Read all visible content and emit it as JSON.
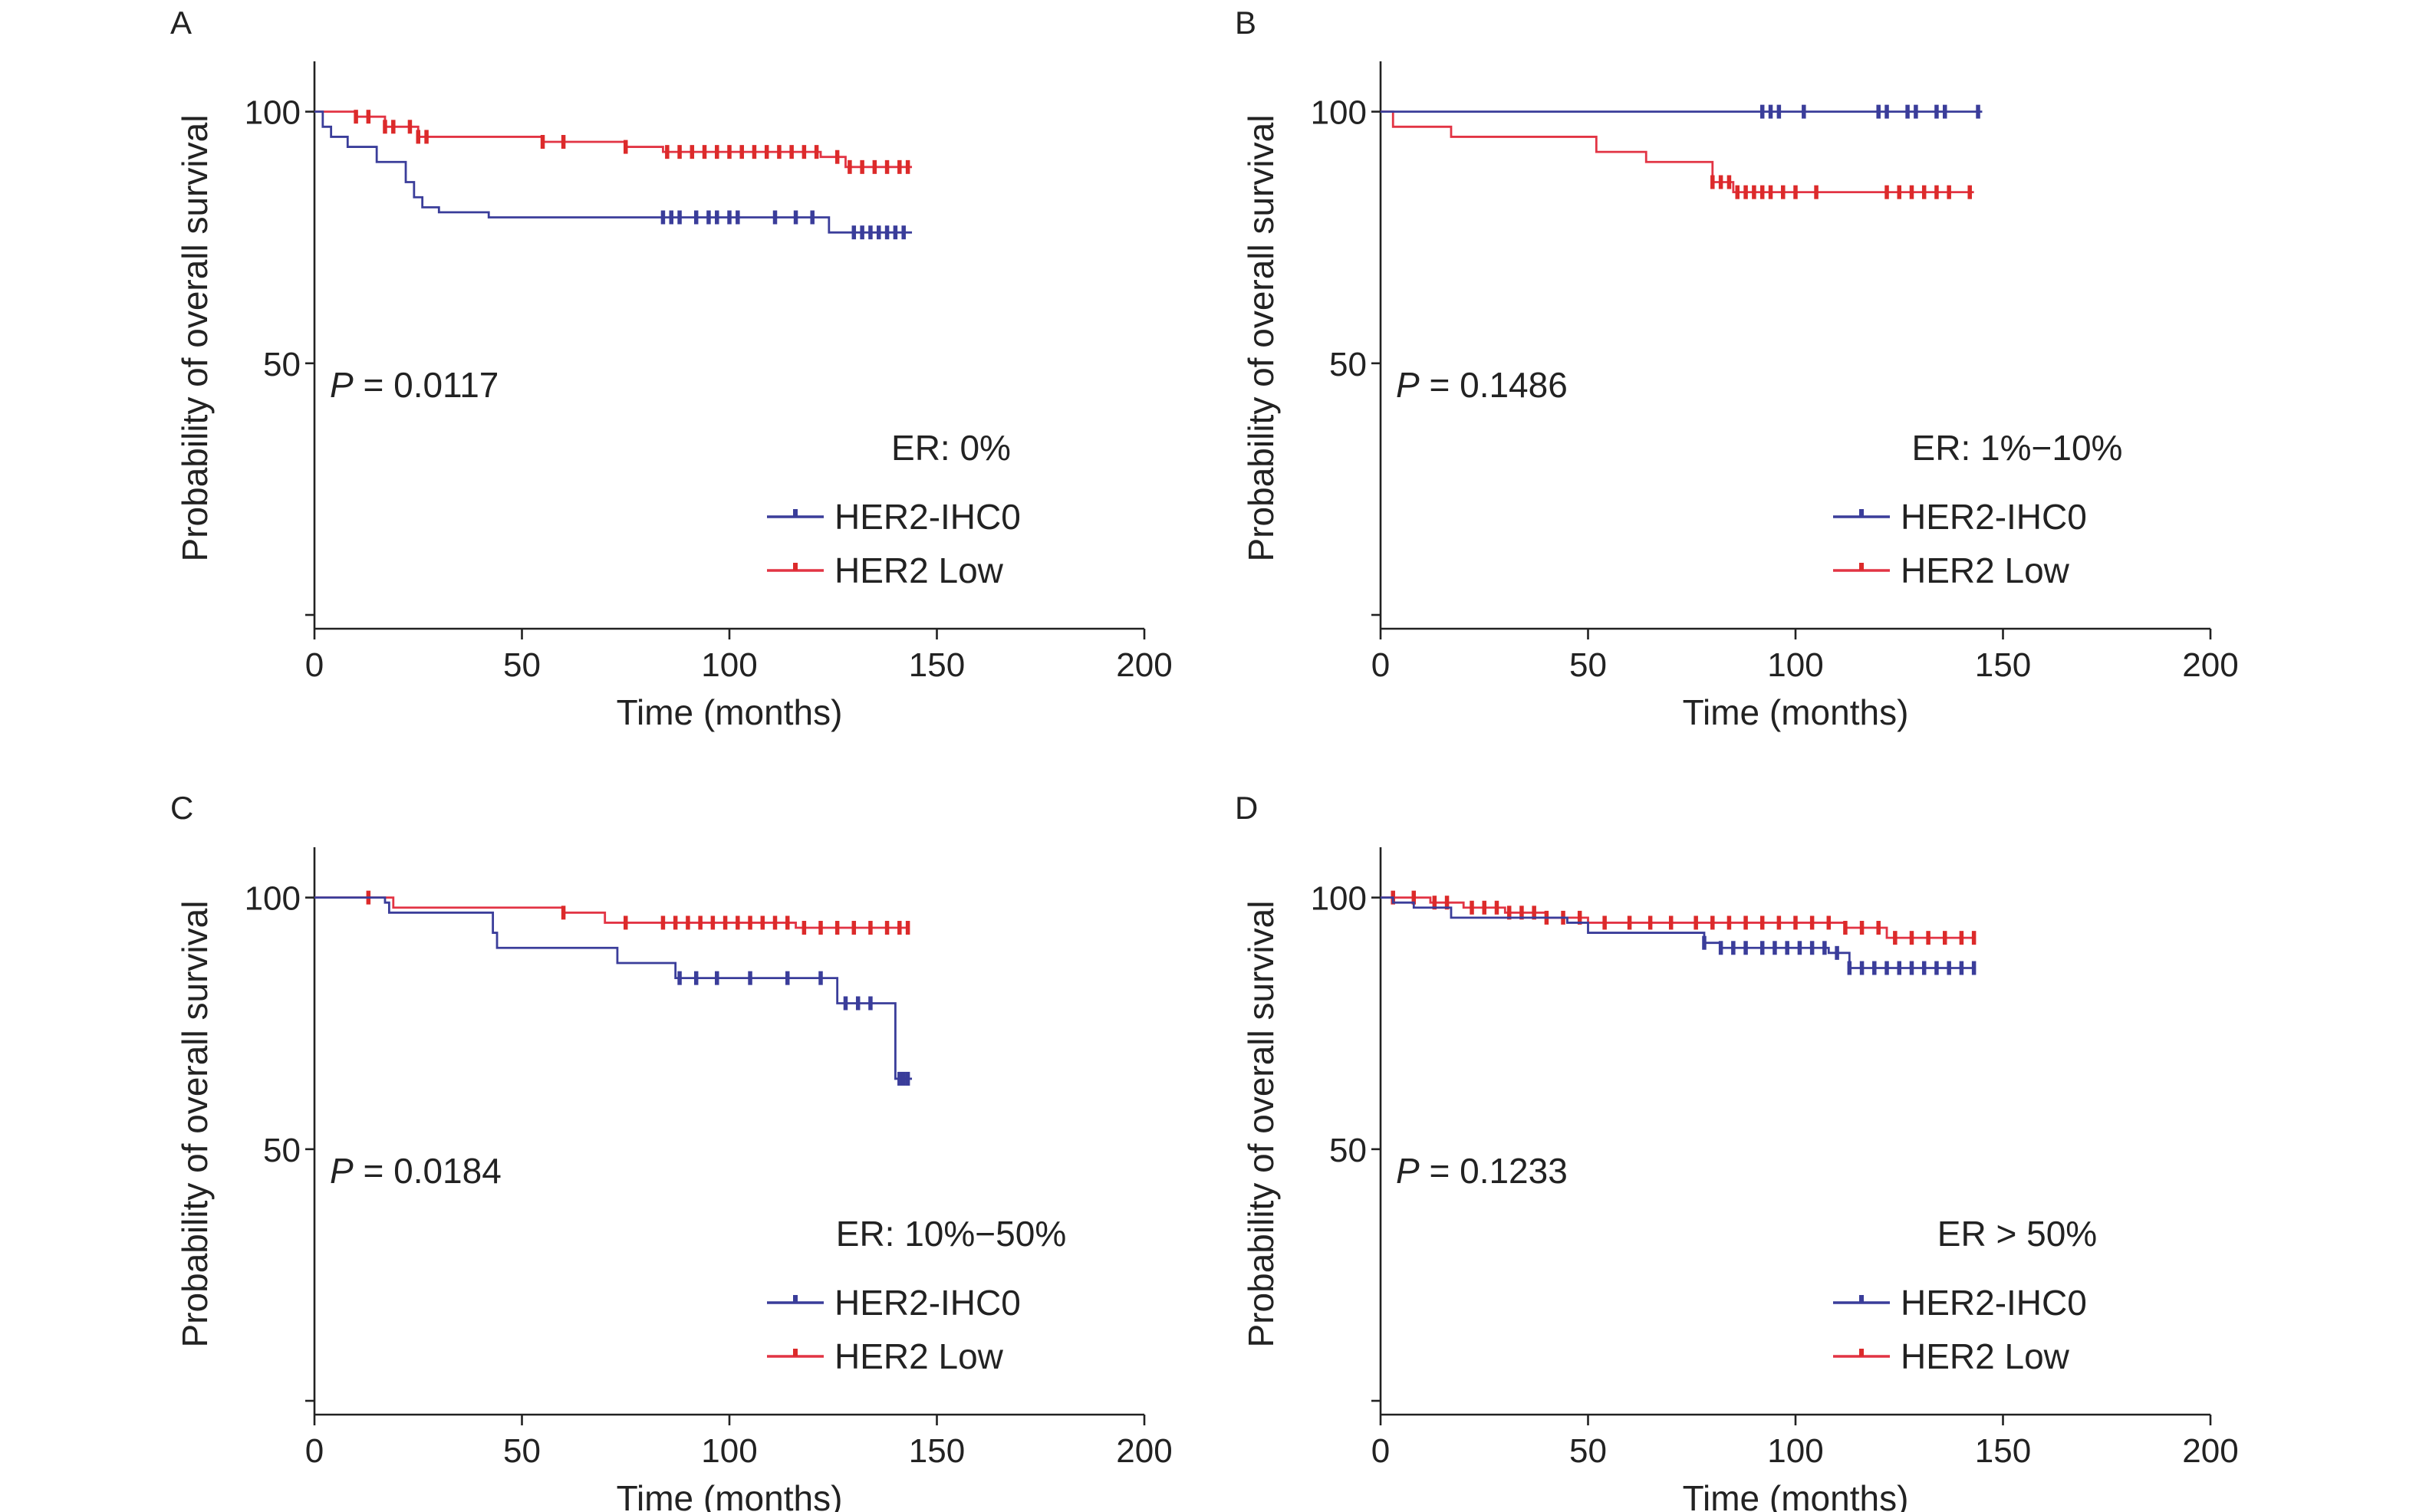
{
  "colors": {
    "her2_ihc0": "#3a3d9a",
    "her2_low": "#e23444",
    "censor_low": "#dc2a2a",
    "axis": "#222222"
  },
  "chart_data": [
    {
      "type": "line",
      "panel_label": "A",
      "xlabel": "Time (months)",
      "ylabel": "Probability of overall survival",
      "xlim": [
        0,
        200
      ],
      "ylim": [
        0,
        110
      ],
      "xticks": [
        0,
        50,
        100,
        150,
        200
      ],
      "yticks": [
        50,
        100
      ],
      "p_label": "P",
      "p_value": " = 0.0117",
      "legend_title": "ER: 0%",
      "legend_placement": "bottom-right",
      "series": [
        {
          "name": "HER2-IHC0",
          "color": "#3a3d9a",
          "x": [
            0,
            2,
            4,
            8,
            15,
            22,
            24,
            26,
            30,
            42,
            124,
            144
          ],
          "y": [
            100,
            97,
            95,
            93,
            90,
            86,
            83,
            81,
            80,
            79,
            76,
            76
          ],
          "censored_x": [
            84,
            86,
            88,
            92,
            95,
            97,
            100,
            102,
            111,
            116,
            120,
            130,
            132,
            134,
            136,
            138,
            140,
            142
          ]
        },
        {
          "name": "HER2 Low",
          "color": "#e23444",
          "x": [
            0,
            10,
            17,
            25,
            55,
            75,
            84,
            122,
            128,
            144
          ],
          "y": [
            100,
            99,
            97,
            95,
            94,
            93,
            92,
            91,
            89,
            89
          ],
          "censored_x": [
            10,
            13,
            17,
            19,
            23,
            25,
            27,
            55,
            60,
            75,
            85,
            88,
            91,
            94,
            97,
            100,
            103,
            106,
            109,
            112,
            115,
            118,
            121,
            126,
            129,
            132,
            135,
            138,
            141,
            143
          ]
        }
      ]
    },
    {
      "type": "line",
      "panel_label": "B",
      "xlabel": "Time (months)",
      "ylabel": "Probability of overall survival",
      "xlim": [
        0,
        200
      ],
      "ylim": [
        0,
        110
      ],
      "xticks": [
        0,
        50,
        100,
        150,
        200
      ],
      "yticks": [
        50,
        100
      ],
      "p_label": "P",
      "p_value": " = 0.1486",
      "legend_title": "ER: 1%−10%",
      "legend_placement": "bottom-right",
      "series": [
        {
          "name": "HER2-IHC0",
          "color": "#3a3d9a",
          "x": [
            0,
            145
          ],
          "y": [
            100,
            100
          ],
          "censored_x": [
            92,
            94,
            96,
            102,
            120,
            122,
            127,
            129,
            134,
            136,
            144
          ]
        },
        {
          "name": "HER2 Low",
          "color": "#e23444",
          "x": [
            0,
            3,
            17,
            52,
            64,
            80,
            85,
            143
          ],
          "y": [
            100,
            97,
            95,
            92,
            90,
            86,
            84,
            84
          ],
          "censored_x": [
            80,
            82,
            84,
            86,
            88,
            90,
            92,
            94,
            97,
            100,
            105,
            122,
            125,
            128,
            131,
            134,
            137,
            142
          ]
        }
      ]
    },
    {
      "type": "line",
      "panel_label": "C",
      "xlabel": "Time (months)",
      "ylabel": "Probability of overall survival",
      "xlim": [
        0,
        200
      ],
      "ylim": [
        0,
        110
      ],
      "xticks": [
        0,
        50,
        100,
        150,
        200
      ],
      "yticks": [
        50,
        100
      ],
      "p_label": "P",
      "p_value": " = 0.0184",
      "legend_title": "ER: 10%−50%",
      "legend_placement": "bottom-right",
      "series": [
        {
          "name": "HER2-IHC0",
          "color": "#3a3d9a",
          "x": [
            0,
            17,
            18,
            42,
            43,
            44,
            73,
            87,
            102,
            122,
            126,
            140,
            144
          ],
          "y": [
            100,
            99,
            97,
            97,
            93,
            90,
            87,
            84,
            84,
            84,
            79,
            64,
            64
          ],
          "censored_x": [
            88,
            92,
            97,
            105,
            114,
            122,
            128,
            131,
            134,
            141,
            142,
            143
          ]
        },
        {
          "name": "HER2 Low",
          "color": "#e23444",
          "x": [
            0,
            19,
            60,
            70,
            116,
            143
          ],
          "y": [
            100,
            98,
            97,
            95,
            94,
            94
          ],
          "censored_x": [
            13,
            60,
            75,
            84,
            87,
            90,
            93,
            96,
            99,
            102,
            105,
            108,
            111,
            114,
            118,
            122,
            126,
            130,
            134,
            138,
            141,
            143
          ]
        }
      ]
    },
    {
      "type": "line",
      "panel_label": "D",
      "xlabel": "Time (months)",
      "ylabel": "Probability of overall survival",
      "xlim": [
        0,
        200
      ],
      "ylim": [
        0,
        110
      ],
      "xticks": [
        0,
        50,
        100,
        150,
        200
      ],
      "yticks": [
        50,
        100
      ],
      "p_label": "P",
      "p_value": " = 0.1233",
      "legend_title": "ER > 50%",
      "legend_placement": "bottom-right",
      "series": [
        {
          "name": "HER2-IHC0",
          "color": "#3a3d9a",
          "x": [
            0,
            3,
            8,
            17,
            45,
            50,
            78,
            82,
            108,
            113,
            143
          ],
          "y": [
            100,
            99,
            98,
            96,
            95,
            93,
            91,
            90,
            89,
            86,
            86
          ],
          "censored_x": [
            78,
            82,
            85,
            88,
            92,
            95,
            98,
            101,
            104,
            107,
            110,
            113,
            116,
            119,
            122,
            125,
            128,
            131,
            134,
            137,
            140,
            143
          ]
        },
        {
          "name": "HER2 Low",
          "color": "#e23444",
          "x": [
            0,
            12,
            20,
            30,
            40,
            50,
            82,
            112,
            122,
            143
          ],
          "y": [
            100,
            99,
            98,
            97,
            96,
            95,
            95,
            94,
            92,
            92
          ],
          "censored_x": [
            3,
            8,
            13,
            16,
            22,
            25,
            28,
            31,
            34,
            37,
            40,
            44,
            48,
            54,
            60,
            65,
            70,
            76,
            80,
            84,
            88,
            92,
            96,
            100,
            104,
            108,
            112,
            116,
            120,
            124,
            128,
            132,
            136,
            140,
            143
          ]
        }
      ]
    }
  ]
}
